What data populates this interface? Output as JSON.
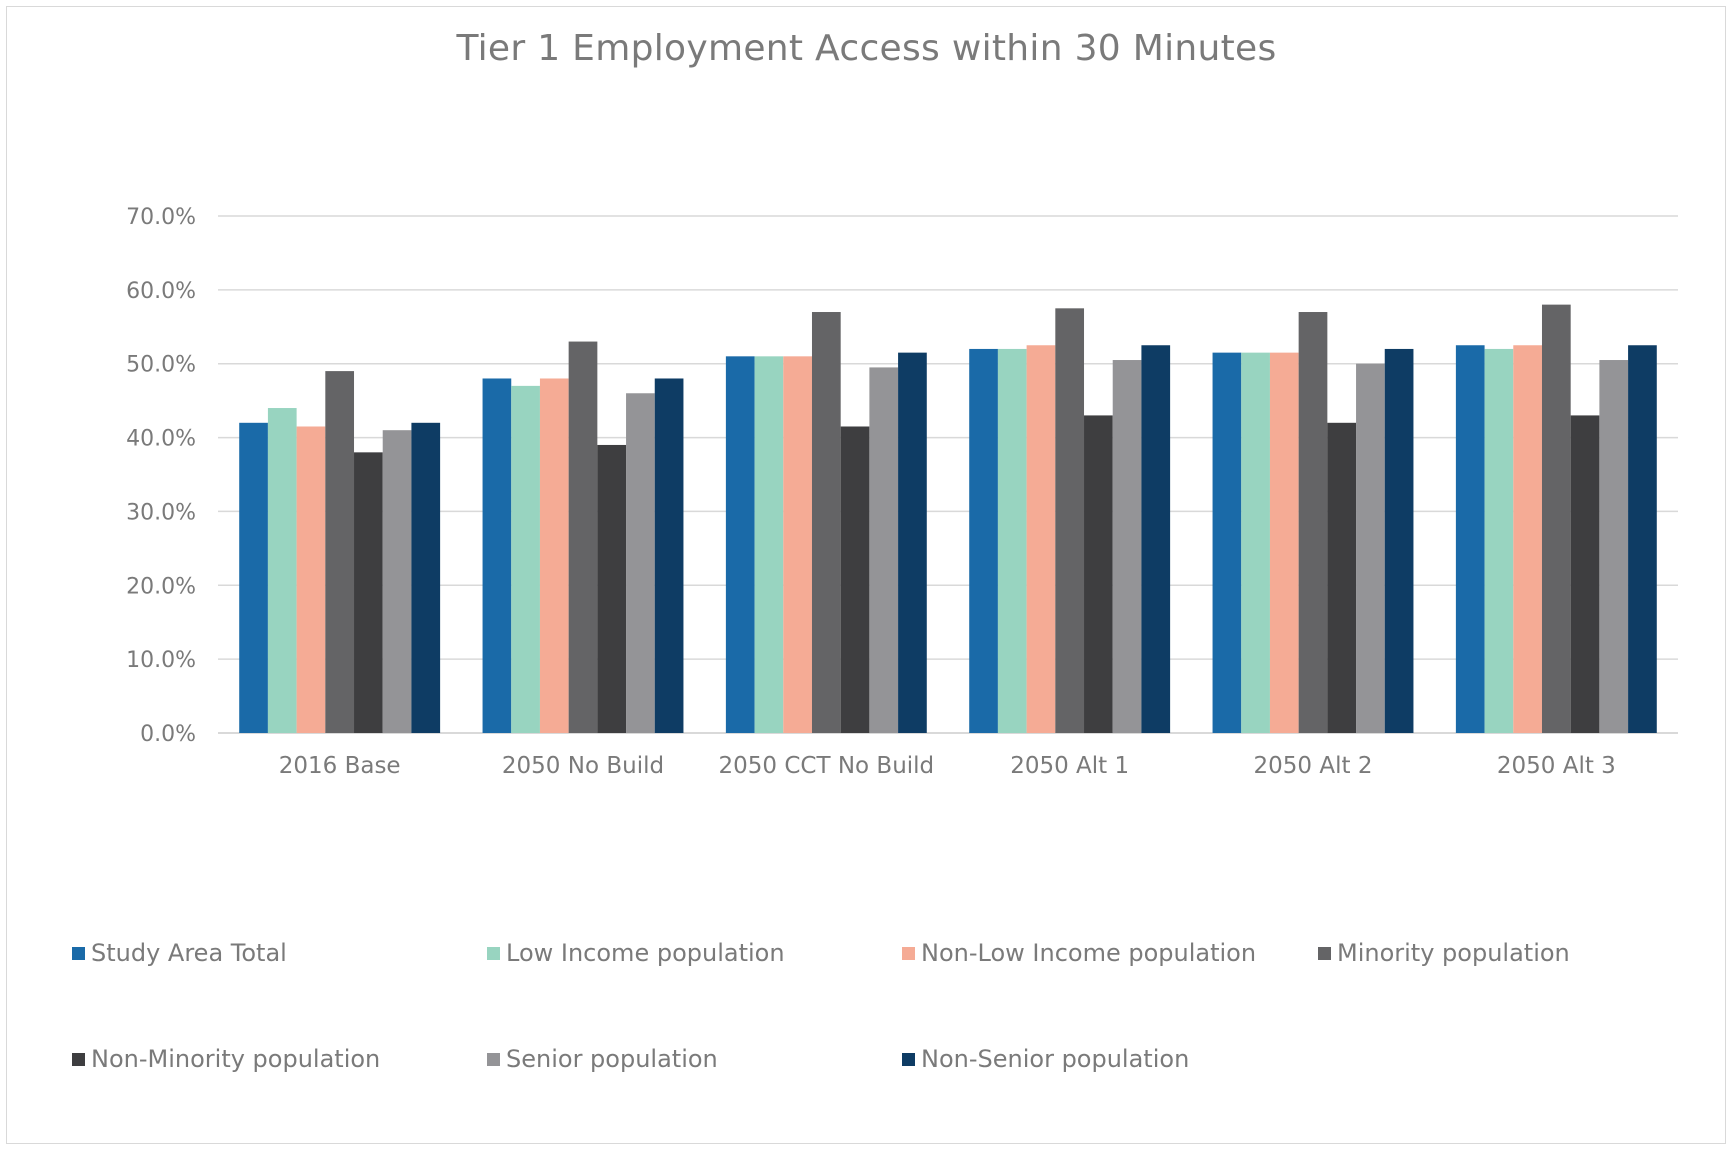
{
  "chart_data": {
    "type": "bar",
    "title": "Tier 1 Employment Access within 30 Minutes",
    "xlabel": "",
    "ylabel": "",
    "ylim": [
      0,
      70
    ],
    "ytick_values": [
      0,
      10,
      20,
      30,
      40,
      50,
      60,
      70
    ],
    "ytick_labels": [
      "0.0%",
      "10.0%",
      "20.0%",
      "30.0%",
      "40.0%",
      "50.0%",
      "60.0%",
      "70.0%"
    ],
    "grid": true,
    "legend_position": "bottom",
    "categories": [
      "2016 Base",
      "2050 No Build",
      "2050 CCT No Build",
      "2050 Alt 1",
      "2050 Alt 2",
      "2050 Alt 3"
    ],
    "series": [
      {
        "name": "Study Area Total",
        "color": "#1a6aa8",
        "values": [
          42,
          48,
          51,
          52,
          51.5,
          52.5
        ]
      },
      {
        "name": "Low Income population",
        "color": "#98d4c0",
        "values": [
          44,
          47,
          51,
          52,
          51.5,
          52
        ]
      },
      {
        "name": "Non-Low Income population",
        "color": "#f5ab95",
        "values": [
          41.5,
          48,
          51,
          52.5,
          51.5,
          52.5
        ]
      },
      {
        "name": "Minority population",
        "color": "#646466",
        "values": [
          49,
          53,
          57,
          57.5,
          57,
          58
        ]
      },
      {
        "name": "Non-Minority population",
        "color": "#3e3e40",
        "values": [
          38,
          39,
          41.5,
          43,
          42,
          43
        ]
      },
      {
        "name": "Senior population",
        "color": "#949497",
        "values": [
          41,
          46,
          49.5,
          50.5,
          50,
          50.5
        ]
      },
      {
        "name": "Non-Senior population",
        "color": "#0e3c64",
        "values": [
          42,
          48,
          51.5,
          52.5,
          52,
          52.5
        ]
      }
    ]
  },
  "colors": {
    "gridline": "#d9d9d9",
    "axis_text": "#7a7a7a",
    "axis_line": "#d9d9d9"
  }
}
